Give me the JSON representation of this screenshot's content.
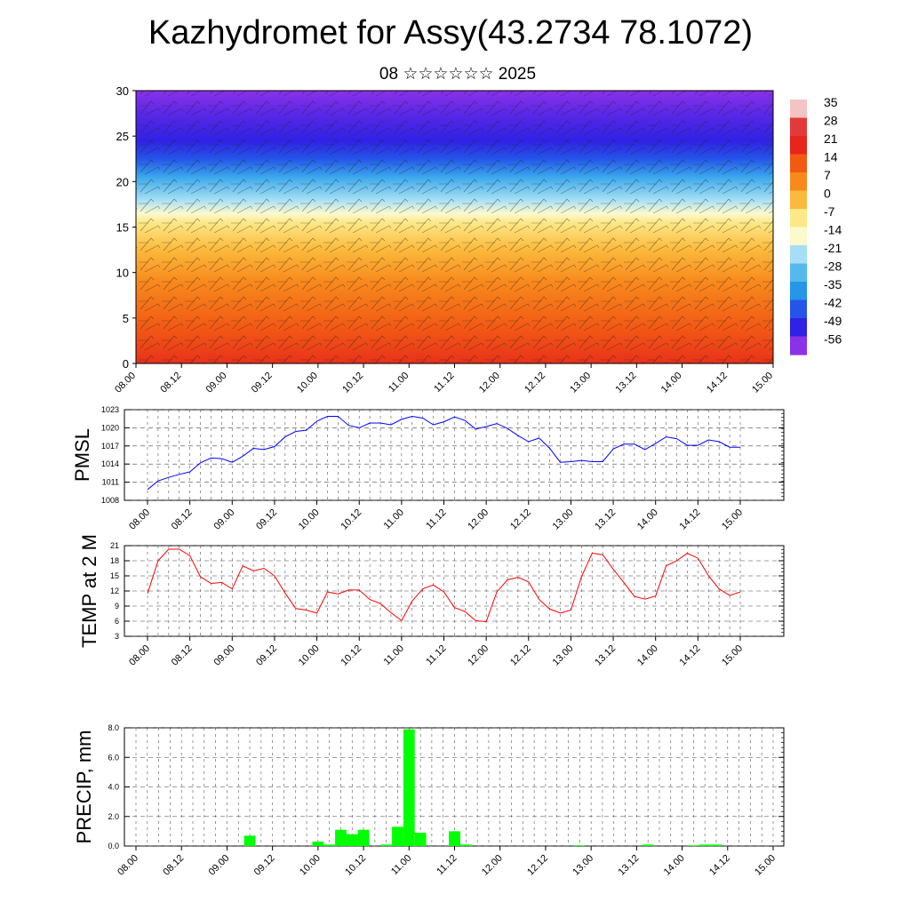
{
  "header": {
    "title": "Kazhydromet for Assy(43.2734 78.1072)",
    "date": "08 ☆☆☆☆☆☆ 2025"
  },
  "time_labels": [
    "08.00",
    "08.12",
    "09.00",
    "09.12",
    "10.00",
    "10.12",
    "11.00",
    "11.12",
    "12.00",
    "12.12",
    "13.00",
    "13.12",
    "14.00",
    "14.12",
    "15.00"
  ],
  "chart_data": [
    {
      "type": "heatmap",
      "title": "",
      "ylim": [
        0,
        30
      ],
      "y_ticks": [
        "0",
        "5",
        "10",
        "15",
        "20",
        "25",
        "30"
      ],
      "colorbar_labels": [
        "35",
        "28",
        "21",
        "14",
        "7",
        "0",
        "-7",
        "-14",
        "-21",
        "-28",
        "-35",
        "-42",
        "-49",
        "-56"
      ],
      "colorbar_colors": [
        "#f4c3c3",
        "#e23a3a",
        "#e8251a",
        "#f25a14",
        "#f88a1c",
        "#fbba3c",
        "#fde887",
        "#fdf9cf",
        "#a6dff5",
        "#55b9ee",
        "#2696e6",
        "#2455e8",
        "#2f22e4",
        "#8a32e8"
      ],
      "colormap_rows": [
        {
          "y": 0,
          "color": "#e8321a"
        },
        {
          "y": 4,
          "color": "#f25a14"
        },
        {
          "y": 9,
          "color": "#f88a1c"
        },
        {
          "y": 12.5,
          "color": "#fbba3c"
        },
        {
          "y": 15.5,
          "color": "#fde887"
        },
        {
          "y": 16.5,
          "color": "#fdf9cf"
        },
        {
          "y": 18,
          "color": "#a6dff5"
        },
        {
          "y": 20.5,
          "color": "#3aa8ec"
        },
        {
          "y": 22.5,
          "color": "#2455e8"
        },
        {
          "y": 24.5,
          "color": "#2f22e4"
        },
        {
          "y": 27.5,
          "color": "#5a28e6"
        },
        {
          "y": 30.5,
          "color": "#8a32e8"
        }
      ]
    },
    {
      "type": "line",
      "ylabel": "PMSL",
      "ylim": [
        1008,
        1023
      ],
      "y_ticks": [
        "1008",
        "1011",
        "1014",
        "1017",
        "1020",
        "1023"
      ],
      "color": "#0000ff",
      "x": [
        0,
        1,
        2,
        3,
        4,
        5,
        6,
        7,
        8,
        9,
        10,
        11,
        12,
        13,
        14,
        15,
        16,
        17,
        18,
        19,
        20,
        21,
        22,
        23,
        24,
        25,
        26,
        27,
        28,
        29,
        30,
        31,
        32,
        33,
        34,
        35,
        36,
        37,
        38,
        39,
        40,
        41,
        42,
        43,
        44,
        45,
        46,
        47,
        48,
        49,
        50,
        51,
        52,
        53,
        54,
        55,
        56
      ],
      "values": [
        1009.8,
        1011.2,
        1011.8,
        1012.3,
        1012.7,
        1014.2,
        1015.0,
        1014.9,
        1014.3,
        1015.3,
        1016.6,
        1016.4,
        1016.9,
        1018.5,
        1019.4,
        1019.6,
        1021.1,
        1021.9,
        1021.9,
        1020.4,
        1020.0,
        1020.8,
        1020.8,
        1020.5,
        1021.4,
        1021.9,
        1021.6,
        1020.5,
        1021.0,
        1021.8,
        1021.2,
        1019.8,
        1020.2,
        1020.7,
        1019.9,
        1018.7,
        1017.7,
        1018.3,
        1016.6,
        1014.3,
        1014.4,
        1014.6,
        1014.4,
        1014.4,
        1016.5,
        1017.3,
        1017.3,
        1016.4,
        1017.4,
        1018.5,
        1018.2,
        1017.1,
        1017.1,
        1018.0,
        1017.7,
        1016.8,
        1016.8
      ]
    },
    {
      "type": "line",
      "ylabel": "TEMP at 2 M",
      "ylim": [
        3,
        21
      ],
      "y_ticks": [
        "3",
        "6",
        "9",
        "12",
        "15",
        "18",
        "21"
      ],
      "color": "#ff0000",
      "x": [
        0,
        1,
        2,
        3,
        4,
        5,
        6,
        7,
        8,
        9,
        10,
        11,
        12,
        13,
        14,
        15,
        16,
        17,
        18,
        19,
        20,
        21,
        22,
        23,
        24,
        25,
        26,
        27,
        28,
        29,
        30,
        31,
        32,
        33,
        34,
        35,
        36,
        37,
        38,
        39,
        40,
        41,
        42,
        43,
        44,
        45,
        46,
        47,
        48,
        49,
        50,
        51,
        52,
        53,
        54,
        55,
        56
      ],
      "values": [
        11.5,
        18.0,
        20.3,
        20.3,
        19.0,
        14.8,
        13.5,
        13.7,
        12.4,
        17.0,
        16.0,
        16.5,
        15.0,
        11.6,
        8.5,
        8.2,
        7.6,
        11.8,
        11.4,
        12.2,
        12.2,
        10.3,
        9.5,
        7.7,
        6.1,
        10.0,
        12.4,
        13.2,
        11.8,
        8.7,
        7.9,
        6.1,
        5.9,
        11.8,
        14.2,
        14.7,
        13.8,
        10.3,
        8.4,
        7.6,
        8.2,
        14.8,
        19.5,
        19.2,
        16.3,
        13.7,
        10.9,
        10.4,
        11.0,
        17.0,
        18.0,
        19.5,
        18.5,
        15.0,
        12.4,
        11.1,
        11.8
      ]
    },
    {
      "type": "bar",
      "ylabel": "PRECIP, mm",
      "ylim": [
        0,
        8
      ],
      "y_ticks": [
        "0.0",
        "2.0",
        "4.0",
        "6.0",
        "8.0"
      ],
      "color": "#00ff00",
      "x": [
        10,
        16,
        17,
        18,
        19,
        20,
        22,
        23,
        24,
        25,
        28,
        29,
        39,
        45,
        49,
        50,
        51
      ],
      "values": [
        0.7,
        0.3,
        0.1,
        1.1,
        0.8,
        1.1,
        0.1,
        1.3,
        7.9,
        0.9,
        1.0,
        0.1,
        0.05,
        0.1,
        0.05,
        0.1,
        0.1
      ]
    }
  ]
}
